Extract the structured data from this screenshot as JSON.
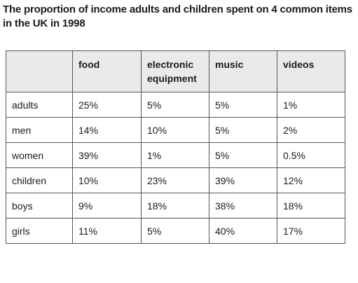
{
  "chart_data": {
    "type": "table",
    "title": "The proportion of income adults and children spent on 4 common items in the UK in 1998",
    "columns": [
      "food",
      "electronic equipment",
      "music",
      "videos"
    ],
    "rows": [
      {
        "label": "adults",
        "values": [
          "25%",
          "5%",
          "5%",
          "1%"
        ]
      },
      {
        "label": "men",
        "values": [
          "14%",
          "10%",
          "5%",
          "2%"
        ]
      },
      {
        "label": "women",
        "values": [
          "39%",
          "1%",
          "5%",
          "0.5%"
        ]
      },
      {
        "label": "children",
        "values": [
          "10%",
          "23%",
          "39%",
          "12%"
        ]
      },
      {
        "label": "boys",
        "values": [
          "9%",
          "18%",
          "38%",
          "18%"
        ]
      },
      {
        "label": "girls",
        "values": [
          "11%",
          "5%",
          "40%",
          "17%"
        ]
      }
    ]
  },
  "colors": {
    "header_background": "#eaeaea",
    "border": "#555555",
    "text": "#1a1a1a"
  }
}
